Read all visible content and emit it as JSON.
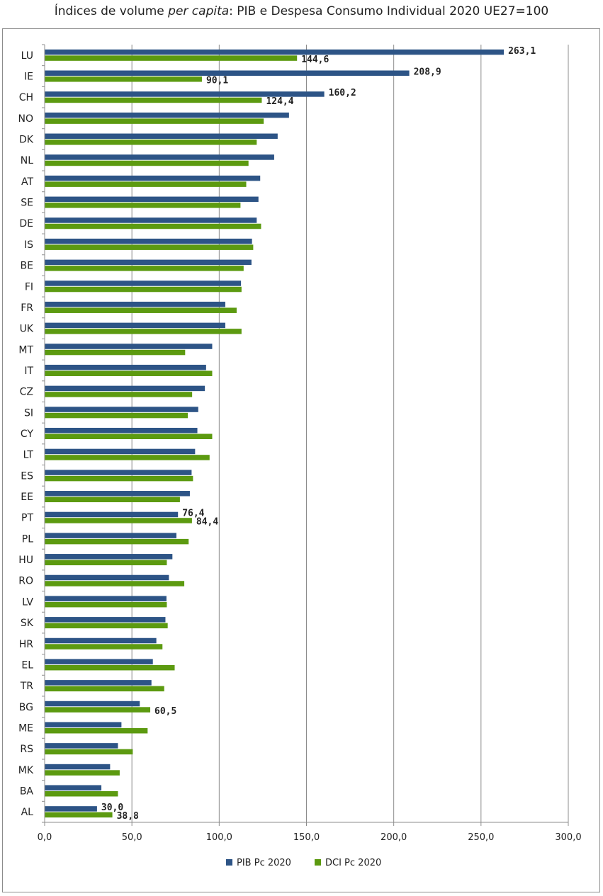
{
  "chart_data": {
    "type": "bar",
    "orientation": "horizontal",
    "title_prefix": "Índices de volume ",
    "title_italic": "per capita",
    "title_suffix": ": PIB e Despesa Consumo Individual 2020 UE27=100",
    "categories": [
      "LU",
      "IE",
      "CH",
      "NO",
      "DK",
      "NL",
      "AT",
      "SE",
      "DE",
      "IS",
      "BE",
      "FI",
      "FR",
      "UK",
      "MT",
      "IT",
      "CZ",
      "SI",
      "CY",
      "LT",
      "ES",
      "EE",
      "PT",
      "PL",
      "HU",
      "RO",
      "LV",
      "SK",
      "HR",
      "EL",
      "TR",
      "BG",
      "ME",
      "RS",
      "MK",
      "BA",
      "AL"
    ],
    "series": [
      {
        "name": "PIB Pc 2020",
        "color": "#2d5486",
        "values": [
          263.1,
          208.9,
          160.2,
          140.0,
          133.5,
          131.5,
          123.5,
          122.5,
          121.5,
          118.8,
          118.5,
          112.5,
          103.5,
          103.5,
          96.0,
          92.5,
          91.8,
          88.0,
          87.5,
          86.2,
          84.2,
          83.2,
          76.4,
          75.5,
          73.2,
          71.2,
          69.8,
          69.2,
          64.0,
          62.0,
          61.2,
          54.5,
          44.0,
          42.0,
          37.5,
          32.5,
          30.0
        ]
      },
      {
        "name": "DCI Pc 2020",
        "color": "#5c9a10",
        "values": [
          144.6,
          90.1,
          124.4,
          125.5,
          121.5,
          116.8,
          115.5,
          112.2,
          124.0,
          119.5,
          114.0,
          112.8,
          110.0,
          112.8,
          80.5,
          96.0,
          84.5,
          82.0,
          96.0,
          94.5,
          85.0,
          77.5,
          84.4,
          82.5,
          70.0,
          80.0,
          70.0,
          70.5,
          67.5,
          74.5,
          68.5,
          60.5,
          59.0,
          50.5,
          43.0,
          42.0,
          38.8
        ]
      }
    ],
    "data_labels": [
      {
        "series": 0,
        "index": 0,
        "text": "263,1"
      },
      {
        "series": 1,
        "index": 0,
        "text": "144,6"
      },
      {
        "series": 0,
        "index": 1,
        "text": "208,9"
      },
      {
        "series": 1,
        "index": 1,
        "text": "90,1"
      },
      {
        "series": 0,
        "index": 2,
        "text": "160,2"
      },
      {
        "series": 1,
        "index": 2,
        "text": "124,4"
      },
      {
        "series": 0,
        "index": 22,
        "text": "76,4"
      },
      {
        "series": 1,
        "index": 22,
        "text": "84,4"
      },
      {
        "series": 1,
        "index": 31,
        "text": "60,5"
      },
      {
        "series": 0,
        "index": 36,
        "text": "30,0"
      },
      {
        "series": 1,
        "index": 36,
        "text": "38,8"
      }
    ],
    "x_ticks": [
      "0,0",
      "50,0",
      "100,0",
      "150,0",
      "200,0",
      "250,0",
      "300,0"
    ],
    "x_tick_values": [
      0,
      50,
      100,
      150,
      200,
      250,
      300
    ],
    "xlim": [
      0,
      300
    ],
    "grid": true,
    "legend_position": "bottom"
  }
}
